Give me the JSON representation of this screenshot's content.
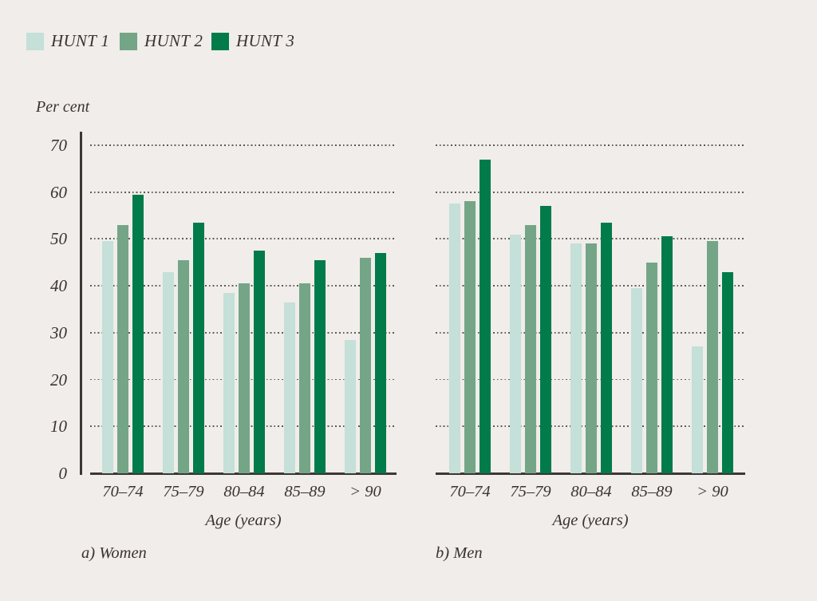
{
  "colors": {
    "background": "#f0edea",
    "text": "#3a332e",
    "axis": "#3c3733",
    "grid_dots": "#5f5a55"
  },
  "legend": {
    "items": [
      {
        "label": "HUNT 1",
        "color": "#c4e0d8"
      },
      {
        "label": "HUNT 2",
        "color": "#74a587"
      },
      {
        "label": "HUNT 3",
        "color": "#007b49"
      }
    ]
  },
  "y_axis_title": "Per cent",
  "chart_data": [
    {
      "type": "bar",
      "title": "a) Women",
      "xlabel": "Age (years)",
      "ylabel": "Per cent",
      "ylim": [
        0,
        70
      ],
      "yticks": [
        0,
        10,
        20,
        30,
        40,
        50,
        60,
        70
      ],
      "grid": "horizontal-dotted",
      "legend_position": "top-left",
      "categories": [
        "70–74",
        "75–79",
        "80–84",
        "85–89",
        "> 90"
      ],
      "series": [
        {
          "name": "HUNT 1",
          "values": [
            49.5,
            43,
            38.5,
            36.5,
            28.5
          ]
        },
        {
          "name": "HUNT 2",
          "values": [
            53,
            45.5,
            40.5,
            40.5,
            46
          ]
        },
        {
          "name": "HUNT 3",
          "values": [
            59.5,
            53.5,
            47.5,
            45.5,
            47
          ]
        }
      ]
    },
    {
      "type": "bar",
      "title": "b) Men",
      "xlabel": "Age (years)",
      "ylabel": "Per cent",
      "ylim": [
        0,
        70
      ],
      "yticks": [
        0,
        10,
        20,
        30,
        40,
        50,
        60,
        70
      ],
      "grid": "horizontal-dotted",
      "categories": [
        "70–74",
        "75–79",
        "80–84",
        "85–89",
        "> 90"
      ],
      "series": [
        {
          "name": "HUNT 1",
          "values": [
            57.5,
            51,
            49,
            39.5,
            27
          ]
        },
        {
          "name": "HUNT 2",
          "values": [
            58,
            53,
            49,
            45,
            49.5
          ]
        },
        {
          "name": "HUNT 3",
          "values": [
            67,
            57,
            53.5,
            50.5,
            43
          ]
        }
      ]
    }
  ]
}
